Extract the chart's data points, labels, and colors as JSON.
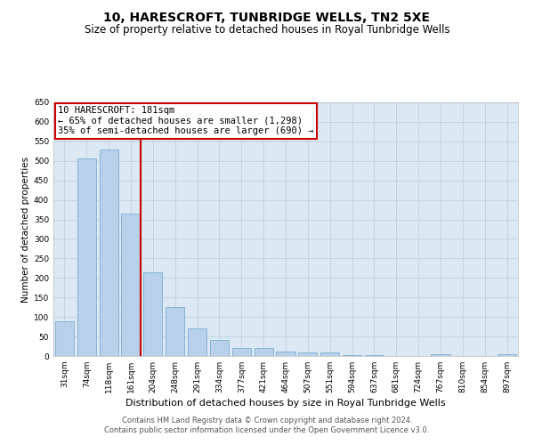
{
  "title": "10, HARESCROFT, TUNBRIDGE WELLS, TN2 5XE",
  "subtitle": "Size of property relative to detached houses in Royal Tunbridge Wells",
  "xlabel": "Distribution of detached houses by size in Royal Tunbridge Wells",
  "ylabel": "Number of detached properties",
  "categories": [
    "31sqm",
    "74sqm",
    "118sqm",
    "161sqm",
    "204sqm",
    "248sqm",
    "291sqm",
    "334sqm",
    "377sqm",
    "421sqm",
    "464sqm",
    "507sqm",
    "551sqm",
    "594sqm",
    "637sqm",
    "681sqm",
    "724sqm",
    "767sqm",
    "810sqm",
    "854sqm",
    "897sqm"
  ],
  "values": [
    88,
    507,
    530,
    365,
    215,
    125,
    70,
    42,
    20,
    20,
    12,
    8,
    10,
    2,
    2,
    0,
    0,
    5,
    0,
    0,
    5
  ],
  "bar_color": "#b8d0ea",
  "bar_edge_color": "#7aaed0",
  "vline_index": 3,
  "vline_color": "#cc0000",
  "annotation_line1": "10 HARESCROFT: 181sqm",
  "annotation_line2": "← 65% of detached houses are smaller (1,298)",
  "annotation_line3": "35% of semi-detached houses are larger (690) →",
  "annotation_box_color": "#cc0000",
  "ylim": [
    0,
    650
  ],
  "yticks": [
    0,
    50,
    100,
    150,
    200,
    250,
    300,
    350,
    400,
    450,
    500,
    550,
    600,
    650
  ],
  "grid_color": "#c0cfe0",
  "background_color": "#dce8f4",
  "footer_text": "Contains HM Land Registry data © Crown copyright and database right 2024.\nContains public sector information licensed under the Open Government Licence v3.0.",
  "title_fontsize": 10,
  "subtitle_fontsize": 8.5,
  "xlabel_fontsize": 8,
  "ylabel_fontsize": 7.5,
  "tick_fontsize": 6.5,
  "annotation_fontsize": 7.5,
  "footer_fontsize": 6
}
